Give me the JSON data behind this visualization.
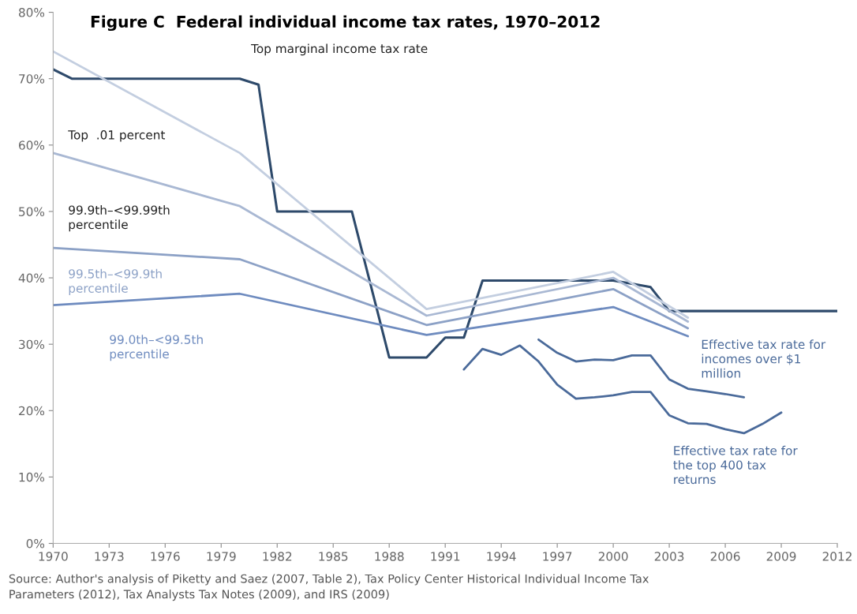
{
  "chart_data": {
    "type": "line",
    "title": "Figure C  Federal individual income tax rates, 1970–2012",
    "xlim": [
      1970,
      2012
    ],
    "xticks": [
      1970,
      1973,
      1976,
      1979,
      1982,
      1985,
      1988,
      1991,
      1994,
      1997,
      2000,
      2003,
      2006,
      2009,
      2012
    ],
    "ylim": [
      0,
      80
    ],
    "yticks": [
      {
        "value": 0,
        "label": "0%"
      },
      {
        "value": 10,
        "label": "10%"
      },
      {
        "value": 20,
        "label": "20%"
      },
      {
        "value": 30,
        "label": "30%"
      },
      {
        "value": 40,
        "label": "40%"
      },
      {
        "value": 50,
        "label": "50%"
      },
      {
        "value": 60,
        "label": "60%"
      },
      {
        "value": 70,
        "label": "70%"
      },
      {
        "value": 80,
        "label": "80%"
      }
    ],
    "grid": false,
    "legend": false,
    "marker": "none",
    "line_style": "solid",
    "series": [
      {
        "name": "Top marginal income tax rate",
        "color": "#2e4a6b",
        "x": [
          1970,
          1971,
          1980,
          1981,
          1982,
          1986,
          1988,
          1990,
          1991,
          1992,
          1993,
          2000,
          2001,
          2002,
          2003,
          2012
        ],
        "values": [
          71.4,
          70,
          70,
          69.1,
          50,
          50,
          28,
          28,
          31,
          31,
          39.6,
          39.6,
          39.1,
          38.6,
          35,
          35
        ]
      },
      {
        "name": "Top  .01 percent",
        "color": "#c3cee0",
        "x": [
          1970,
          1980,
          1990,
          2000,
          2004
        ],
        "values": [
          74.1,
          58.8,
          35.3,
          40.9,
          34.0
        ]
      },
      {
        "name": "99.9th–<99.99th\npercentile",
        "color": "#a9b8d3",
        "x": [
          1970,
          1980,
          1990,
          2000,
          2004
        ],
        "values": [
          58.8,
          50.8,
          34.3,
          40.0,
          33.4
        ]
      },
      {
        "name": "99.5th–<99.9th\npercentile",
        "color": "#8ca1c6",
        "x": [
          1970,
          1980,
          1990,
          2000,
          2004
        ],
        "values": [
          44.5,
          42.8,
          32.9,
          38.3,
          32.4
        ]
      },
      {
        "name": "99.0th–<99.5th\npercentile",
        "color": "#6e8bbf",
        "x": [
          1970,
          1980,
          1990,
          2000,
          2004
        ],
        "values": [
          35.9,
          37.6,
          31.4,
          35.6,
          31.2
        ]
      },
      {
        "name": "Effective tax rate for\nincomes over $1\nmillion",
        "color": "#4a6a9a",
        "x": [
          1996,
          1997,
          1998,
          1999,
          2000,
          2001,
          2002,
          2003,
          2004,
          2005,
          2006,
          2007
        ],
        "values": [
          30.7,
          28.7,
          27.4,
          27.7,
          27.6,
          28.3,
          28.3,
          24.7,
          23.3,
          22.9,
          22.5,
          22.0
        ]
      },
      {
        "name": "Effective tax rate for\nthe top 400 tax\nreturns",
        "color": "#4a6a9a",
        "x": [
          1992,
          1993,
          1994,
          1995,
          1996,
          1997,
          1998,
          1999,
          2000,
          2001,
          2002,
          2003,
          2004,
          2005,
          2006,
          2007,
          2008,
          2009
        ],
        "values": [
          26.2,
          29.3,
          28.4,
          29.8,
          27.4,
          23.9,
          21.8,
          22.0,
          22.3,
          22.8,
          22.8,
          19.3,
          18.1,
          18.0,
          17.2,
          16.6,
          18.0,
          19.7
        ]
      }
    ],
    "annotations": [
      "Source: Author's analysis of Piketty and Saez (2007, Table 2), Tax Policy Center Historical Individual Income Tax\nParameters (2012), Tax Analysts Tax Notes (2009), and IRS (2009)"
    ]
  }
}
